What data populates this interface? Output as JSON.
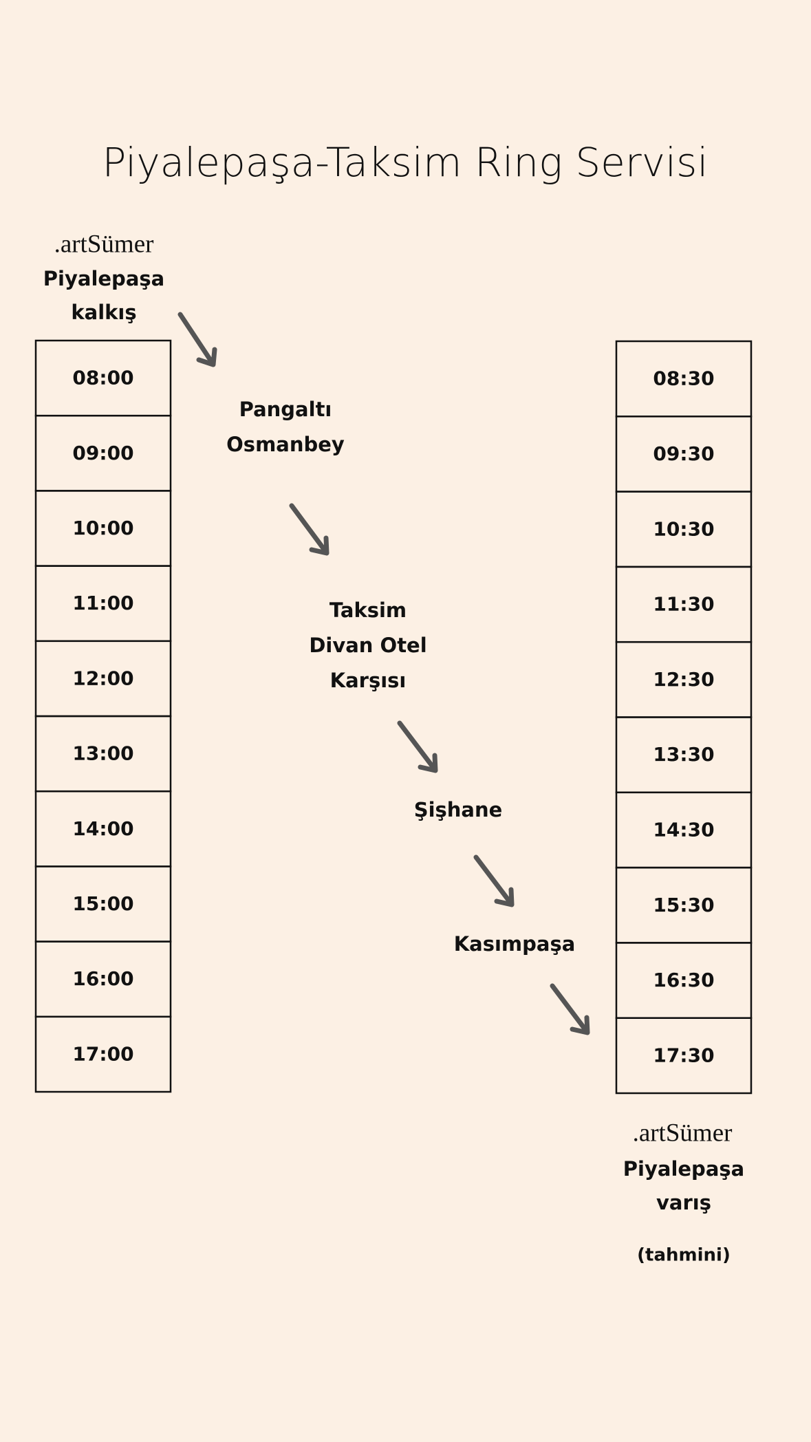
{
  "title": "Piyalepaşa-Taksim Ring Servisi",
  "departure": {
    "brand": ".artSümer",
    "place": "Piyalepaşa",
    "label": "kalkış",
    "times": [
      "08:00",
      "09:00",
      "10:00",
      "11:00",
      "12:00",
      "13:00",
      "14:00",
      "15:00",
      "16:00",
      "17:00"
    ]
  },
  "stops": [
    {
      "lines": [
        "Pangaltı",
        "Osmanbey"
      ]
    },
    {
      "lines": [
        "Taksim",
        "Divan Otel",
        "Karşısı"
      ]
    },
    {
      "lines": [
        "Şişhane"
      ]
    },
    {
      "lines": [
        "Kasımpaşa"
      ]
    }
  ],
  "arrival": {
    "brand": ".artSümer",
    "place": "Piyalepaşa",
    "label": "varış",
    "note": "(tahmini)",
    "times": [
      "08:30",
      "09:30",
      "10:30",
      "11:30",
      "12:30",
      "13:30",
      "14:30",
      "15:30",
      "16:30",
      "17:30"
    ]
  }
}
